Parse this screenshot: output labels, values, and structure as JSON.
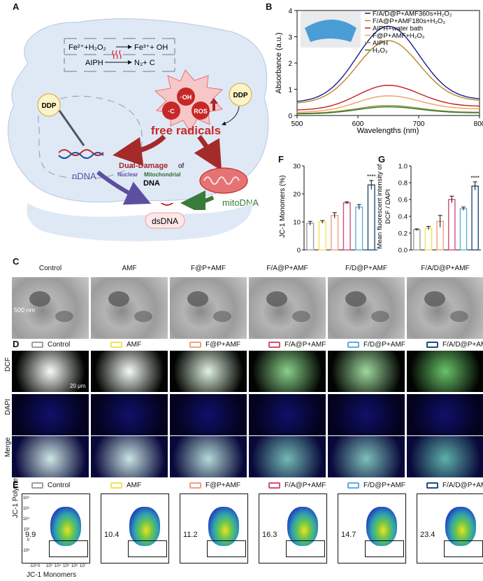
{
  "panels": {
    "A": "A",
    "B": "B",
    "C": "C",
    "D": "D",
    "E": "E",
    "F": "F",
    "G": "G"
  },
  "schematic": {
    "eq1_left": "Fe²⁺+H₂O₂",
    "eq1_right": "Fe³⁺+ OH",
    "eq2_left": "AIPH",
    "eq2_right": "N₂+ C",
    "ddp_top": "DDP",
    "ddp_left": "DDP",
    "radical_oh": "·OH",
    "radical_c": "·C",
    "radical_ros": "ROS",
    "free_radicals": "free radicals",
    "dual_damage": "Dual-Damage",
    "of": "of",
    "nuclear": "Nuclear",
    "mitochondrial": "Mitochondrial",
    "dna": "DNA",
    "ndna": "nDNA",
    "mitodna": "mitoDNA",
    "dsdna": "dsDNA"
  },
  "groups": [
    "Control",
    "AMF",
    "F@P+AMF",
    "F/A@P+AMF",
    "F/D@P+AMF",
    "F/A/D@P+AMF"
  ],
  "group_colors": [
    "#9e9e9e",
    "#f2e25a",
    "#f0a080",
    "#d0507a",
    "#5aaee0",
    "#1f4e79"
  ],
  "absorbance_chart": {
    "type": "line",
    "ylabel": "Absorbance (a.u.)",
    "xlabel": "Wavelengths (nm)",
    "xlim": [
      500,
      800
    ],
    "ylim": [
      0,
      4
    ],
    "xticks": [
      "500",
      "600",
      "700",
      "800"
    ],
    "yticks": [
      "0",
      "1",
      "2",
      "3",
      "4"
    ],
    "series": [
      {
        "name": "F/A/D@P+AMF360s+H₂O₂",
        "color": "#1a1a8c",
        "peak": 3.4,
        "edge_left": 0.5,
        "edge_right": 0.6
      },
      {
        "name": "F/A@P+AMF180s+H₂O₂",
        "color": "#b8862b",
        "peak": 2.85,
        "edge_left": 0.45,
        "edge_right": 0.55
      },
      {
        "name": "AIPH+water bath",
        "color": "#c0201c",
        "peak": 1.15,
        "edge_left": 0.2,
        "edge_right": 0.35
      },
      {
        "name": "F@P+AMF+H₂O₂",
        "color": "#f0a060",
        "peak": 0.75,
        "edge_left": 0.12,
        "edge_right": 0.25
      },
      {
        "name": "AIPH",
        "color": "#a08a30",
        "peak": 0.38,
        "edge_left": 0.08,
        "edge_right": 0.12
      },
      {
        "name": "H₂O₂",
        "color": "#2d7a2d",
        "peak": 0.33,
        "edge_left": 0.06,
        "edge_right": 0.1
      }
    ]
  },
  "jc1_chart": {
    "type": "bar",
    "ylabel": "JC-1 Monomers (%)",
    "ylim": [
      0,
      30
    ],
    "yticks": [
      "0",
      "10",
      "20",
      "30"
    ],
    "values": [
      9.5,
      10.0,
      12.3,
      16.8,
      15.3,
      23.2
    ],
    "errors": [
      0.7,
      0.5,
      1.0,
      0.4,
      0.9,
      1.6
    ],
    "significance": "****"
  },
  "dcf_chart": {
    "type": "bar",
    "ylabel_line1": "Mean fluorescent intensity of",
    "ylabel_line2": "DCF / DAPI",
    "ylim": [
      0,
      1.0
    ],
    "yticks": [
      "0.0",
      "0.2",
      "0.4",
      "0.6",
      "0.8",
      "1.0"
    ],
    "values": [
      0.24,
      0.26,
      0.34,
      0.6,
      0.49,
      0.76
    ],
    "errors": [
      0.01,
      0.02,
      0.07,
      0.04,
      0.02,
      0.05
    ],
    "significance": "****"
  },
  "tem": {
    "scale": "500 nm"
  },
  "fluor": {
    "rows": [
      "DCF",
      "DAPI",
      "Merge"
    ],
    "scale": "20 μm"
  },
  "flow": {
    "ylabel": "JC-1 Polymers",
    "xlabel": "JC-1 Monomers",
    "values": [
      "9.9",
      "10.4",
      "11.2",
      "16.3",
      "14.7",
      "23.4"
    ],
    "yticks": [
      "10⁶",
      "10⁵",
      "10⁴",
      "10³",
      "0",
      "-10³"
    ],
    "xticks": [
      "-10³",
      "0",
      "10³",
      "10⁴",
      "10⁵",
      "10⁶",
      "10⁷"
    ]
  },
  "colors": {
    "cell": "#dfe9f6",
    "radical": "#c62828",
    "dual": "#a52a2a",
    "ndna": "#5c4fa0",
    "mito": "#3a7a3a"
  }
}
